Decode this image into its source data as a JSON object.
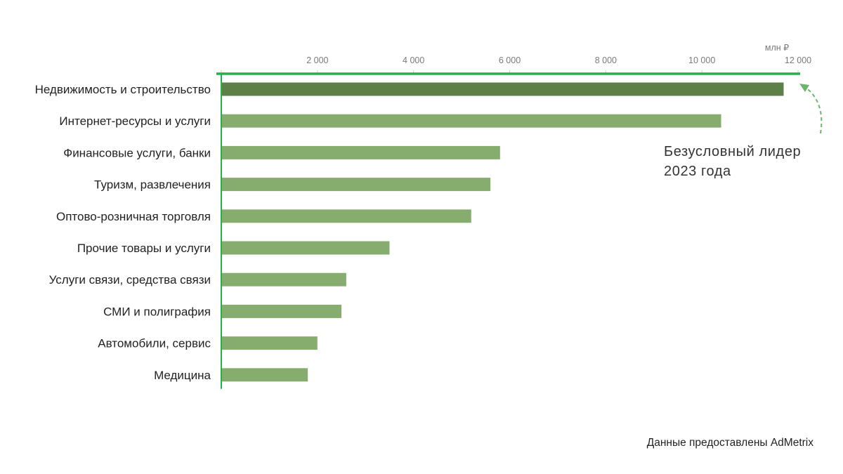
{
  "chart_data": {
    "type": "bar",
    "orientation": "horizontal",
    "categories": [
      "Недвижимость и строительство",
      "Интернет-ресурсы и услуги",
      "Финансовые услуги, банки",
      "Туризм, развлечения",
      "Оптово-розничная торговля",
      "Прочие товары и услуги",
      "Услуги связи, средства связи",
      "СМИ и полиграфия",
      "Автомобили, сервис",
      "Медицина"
    ],
    "values": [
      11700,
      10400,
      5800,
      5600,
      5200,
      3500,
      2600,
      2500,
      2000,
      1800
    ],
    "xlim": [
      0,
      12000
    ],
    "x_ticks": [
      0,
      2000,
      4000,
      6000,
      8000,
      10000,
      12000
    ],
    "x_tick_labels": [
      "",
      "2 000",
      "4 000",
      "6 000",
      "8 000",
      "10 000",
      "12 000"
    ],
    "unit": "млн ₽",
    "axis_position": "top",
    "grid": false,
    "highlight_index": 0,
    "colors": {
      "bar": "#86ad6e",
      "highlight": "#5f7f48",
      "axis": "#22b14c",
      "arrow": "#6db56d"
    }
  },
  "annotation": {
    "line1": "Безусловный лидер",
    "line2": "2023 года"
  },
  "source": "Данные предоставлены AdMetrix"
}
